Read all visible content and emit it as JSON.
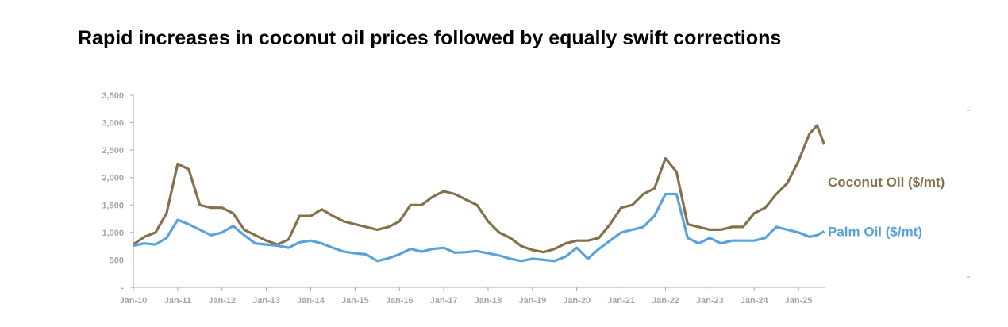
{
  "chart_data": {
    "type": "line",
    "title": "Rapid increases in coconut oil prices followed by equally swift corrections",
    "xlabel": "",
    "ylabel": "",
    "ylim": [
      0,
      3500
    ],
    "yticks": [
      0,
      500,
      1000,
      1500,
      2000,
      2500,
      3000,
      3500
    ],
    "ytick_labels": [
      "-",
      "500",
      "1,000",
      "1,500",
      "2,000",
      "2,500",
      "3,000",
      "3,500"
    ],
    "xlim": [
      2010,
      2025.6
    ],
    "xtick_labels": [
      "Jan-10",
      "Jan-11",
      "Jan-12",
      "Jan-13",
      "Jan-14",
      "Jan-15",
      "Jan-16",
      "Jan-17",
      "Jan-18",
      "Jan-19",
      "Jan-20",
      "Jan-21",
      "Jan-22",
      "Jan-23",
      "Jan-24",
      "Jan-25"
    ],
    "grid": false,
    "x": [
      2010,
      2010.25,
      2010.5,
      2010.75,
      2011,
      2011.25,
      2011.5,
      2011.75,
      2012,
      2012.25,
      2012.5,
      2012.75,
      2013,
      2013.25,
      2013.5,
      2013.75,
      2014,
      2014.25,
      2014.5,
      2014.75,
      2015,
      2015.25,
      2015.5,
      2015.75,
      2016,
      2016.25,
      2016.5,
      2016.75,
      2017,
      2017.25,
      2017.5,
      2017.75,
      2018,
      2018.25,
      2018.5,
      2018.75,
      2019,
      2019.25,
      2019.5,
      2019.75,
      2020,
      2020.25,
      2020.5,
      2020.75,
      2021,
      2021.25,
      2021.5,
      2021.75,
      2022,
      2022.25,
      2022.5,
      2022.75,
      2023,
      2023.25,
      2023.5,
      2023.75,
      2024,
      2024.25,
      2024.5,
      2024.75,
      2025,
      2025.25,
      2025.42,
      2025.58
    ],
    "series": [
      {
        "name": "Coconut Oil ($/mt)",
        "color": "#85704a",
        "values": [
          780,
          920,
          1000,
          1350,
          2250,
          2150,
          1500,
          1450,
          1450,
          1350,
          1050,
          950,
          850,
          780,
          870,
          1300,
          1300,
          1420,
          1300,
          1200,
          1150,
          1100,
          1050,
          1100,
          1200,
          1500,
          1500,
          1650,
          1750,
          1700,
          1600,
          1500,
          1200,
          1000,
          900,
          750,
          680,
          640,
          700,
          800,
          850,
          850,
          900,
          1150,
          1450,
          1500,
          1700,
          1800,
          2350,
          2100,
          1150,
          1100,
          1050,
          1050,
          1100,
          1100,
          1350,
          1450,
          1700,
          1900,
          2300,
          2800,
          2950,
          2600
        ]
      },
      {
        "name": "Palm Oil ($/mt)",
        "color": "#5aa2dc",
        "values": [
          760,
          800,
          780,
          900,
          1230,
          1150,
          1050,
          950,
          1000,
          1120,
          950,
          800,
          780,
          760,
          720,
          820,
          850,
          800,
          720,
          650,
          620,
          600,
          480,
          530,
          600,
          700,
          650,
          700,
          720,
          630,
          640,
          660,
          620,
          580,
          520,
          480,
          520,
          500,
          480,
          560,
          720,
          520,
          700,
          850,
          1000,
          1050,
          1100,
          1300,
          1700,
          1700,
          900,
          800,
          900,
          800,
          850,
          850,
          850,
          900,
          1100,
          1050,
          1000,
          920,
          950,
          1020
        ]
      }
    ]
  }
}
